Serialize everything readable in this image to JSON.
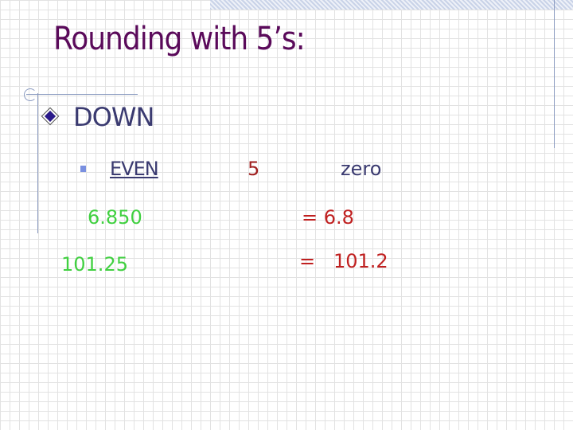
{
  "slide": {
    "title": "Rounding with 5’s:",
    "bullet": "DOWN",
    "sub_bullet": {
      "label": "EVEN",
      "digit": "5",
      "after": "zero"
    },
    "examples": [
      {
        "value": "6.850",
        "result": "= 6.8"
      },
      {
        "value": "101.25",
        "result": "=   101.2"
      }
    ],
    "colors": {
      "title": "#5a0a5a",
      "text": "#3a3a70",
      "example": "#40d040",
      "result": "#c02020"
    }
  }
}
